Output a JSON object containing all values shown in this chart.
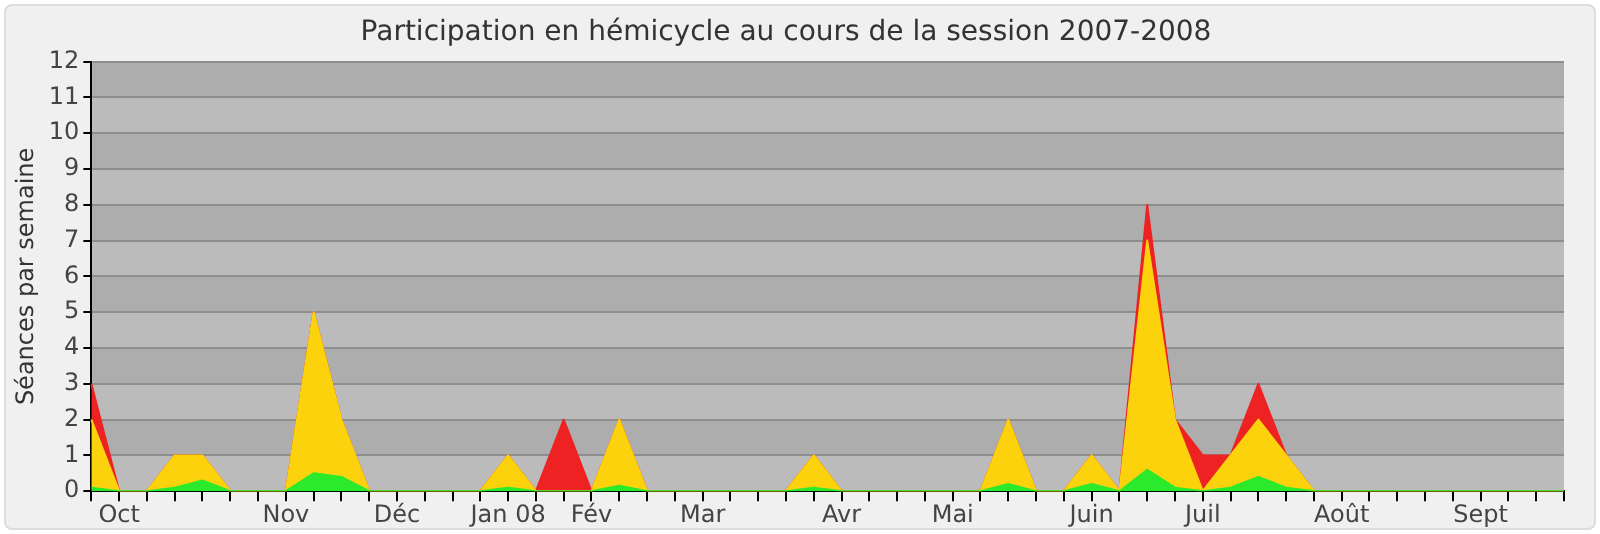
{
  "chart_data": {
    "type": "area",
    "title": "Participation en hémicycle au cours de la session 2007-2008",
    "ylabel": "Séances par semaine",
    "stacked": true,
    "grid": "y",
    "legend": false,
    "ylim": [
      0,
      12
    ],
    "yticks": [
      0,
      1,
      2,
      3,
      4,
      5,
      6,
      7,
      8,
      9,
      10,
      11,
      12
    ],
    "categories": [
      null,
      "Oct",
      null,
      null,
      null,
      null,
      null,
      "Nov",
      null,
      null,
      null,
      "Déc",
      null,
      null,
      null,
      "Jan 08",
      null,
      null,
      "Fév",
      null,
      null,
      null,
      "Mar",
      null,
      null,
      null,
      null,
      "Avr",
      null,
      null,
      null,
      "Mai",
      null,
      null,
      null,
      null,
      "Juin",
      null,
      null,
      null,
      "Juil",
      null,
      null,
      null,
      null,
      "Août",
      null,
      null,
      null,
      null,
      "Sept",
      null,
      null,
      null
    ],
    "series": [
      {
        "color": "#2bea2b",
        "values": [
          0.1,
          0,
          0,
          0.1,
          0.3,
          0,
          0,
          0,
          0.5,
          0.4,
          0,
          0,
          0,
          0,
          0,
          0.1,
          0,
          0,
          0,
          0.15,
          0,
          0,
          0,
          0,
          0,
          0,
          0.1,
          0,
          0,
          0,
          0,
          0,
          0,
          0.2,
          0,
          0,
          0.2,
          0,
          0.6,
          0.1,
          0,
          0.1,
          0.4,
          0.1,
          0,
          0,
          0,
          0,
          0,
          0,
          0,
          0,
          0,
          0
        ]
      },
      {
        "color": "#fcd20c",
        "values": [
          1.9,
          0,
          0,
          0.9,
          0.7,
          0,
          0,
          0,
          4.5,
          1.6,
          0,
          0,
          0,
          0,
          0,
          0.9,
          0,
          0,
          0,
          1.85,
          0,
          0,
          0,
          0,
          0,
          0,
          0.9,
          0,
          0,
          0,
          0,
          0,
          0,
          1.8,
          0,
          0,
          0.8,
          0,
          6.4,
          1.9,
          0,
          0.9,
          1.6,
          0.9,
          0,
          0,
          0,
          0,
          0,
          0,
          0,
          0,
          0,
          0
        ]
      },
      {
        "color": "#ee2222",
        "values": [
          1,
          0,
          0,
          0,
          0,
          0,
          0,
          0,
          0,
          0,
          0,
          0,
          0,
          0,
          0,
          0,
          0,
          2,
          0,
          0,
          0,
          0,
          0,
          0,
          0,
          0,
          0,
          0,
          0,
          0,
          0,
          0,
          0,
          0,
          0,
          0,
          0,
          0,
          1,
          0,
          1,
          0,
          1,
          0,
          0,
          0,
          0,
          0,
          0,
          0,
          0,
          0,
          0,
          0
        ]
      }
    ]
  }
}
